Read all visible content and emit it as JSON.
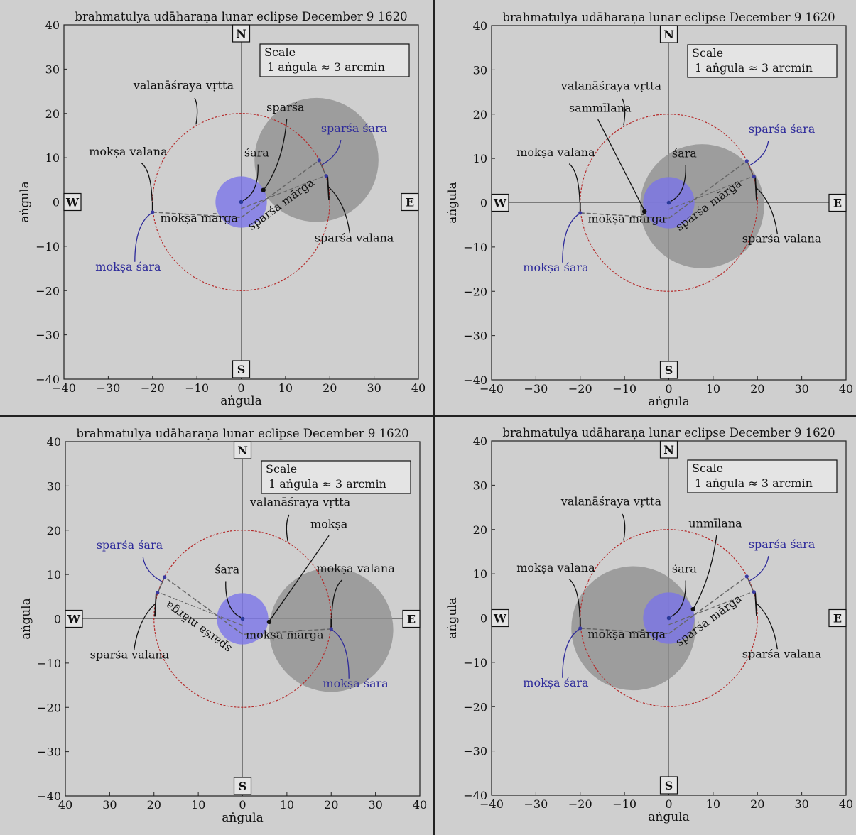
{
  "figure": {
    "title": "brahmatulya udāharaṇa lunar eclipse December 9 1620",
    "scale": {
      "line1": "Scale",
      "line2": "1 aṅgula  ≈  3 arcmin"
    },
    "xlabel": "aṅgula",
    "ylabel": "aṅgula",
    "directions": {
      "north": "N",
      "south": "S",
      "east": "E",
      "west": "W"
    },
    "ticks": [
      -40,
      -30,
      -20,
      -10,
      0,
      10,
      20,
      30,
      40
    ],
    "labels": {
      "valanasraya_vrtta": "valanāśraya vṛtta",
      "moksa_valana": "mokṣa valana",
      "moksa_sara": "mokṣa śara",
      "moksa_marga": "mokṣa mārga",
      "sparsa_marga": "sparśa mārga",
      "sparsa_sara": "sparśa śara",
      "sparsa_valana": "sparśa valana",
      "sara": "śara"
    },
    "colors": {
      "background": "#cfcfcf",
      "moon": "#7b74e8",
      "shadow": "#8e8e8e",
      "circle": "#b52a2a",
      "blue_label": "#2d2a9a"
    }
  },
  "panels": [
    {
      "phase_label": "sparśa",
      "x_reversed": false,
      "moon_center": [
        0,
        0
      ],
      "shadow_center": [
        17,
        9.5
      ],
      "shadow_radius": 14,
      "moon_radius": 5.8,
      "phase_point": [
        5,
        2.7
      ]
    },
    {
      "phase_label": "sammīlana",
      "x_reversed": false,
      "moon_center": [
        0,
        0
      ],
      "shadow_center": [
        7.5,
        -0.8
      ],
      "shadow_radius": 14,
      "moon_radius": 5.8,
      "phase_point": [
        -5.5,
        -2
      ]
    },
    {
      "phase_label": "mokṣa",
      "x_reversed": true,
      "moon_center": [
        0,
        0
      ],
      "shadow_center": [
        -20,
        -2.5
      ],
      "shadow_radius": 14,
      "moon_radius": 5.8,
      "phase_point": [
        -6,
        -0.7
      ]
    },
    {
      "phase_label": "unmīlana",
      "x_reversed": false,
      "moon_center": [
        0,
        0
      ],
      "shadow_center": [
        -8,
        -2.3
      ],
      "shadow_radius": 14,
      "moon_radius": 5.8,
      "phase_point": [
        5.5,
        2
      ]
    }
  ]
}
